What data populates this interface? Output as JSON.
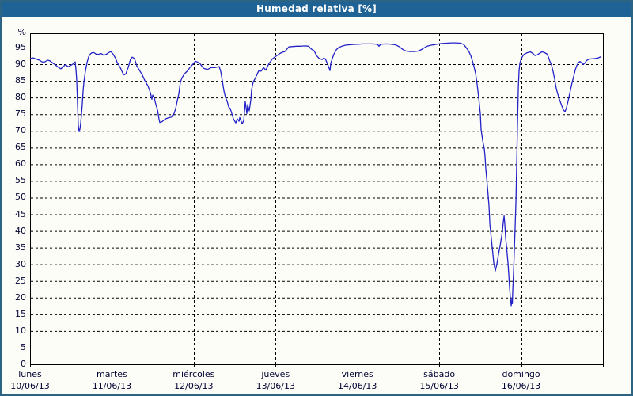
{
  "window": {
    "title": "Humedad relativa [%]"
  },
  "colors": {
    "header_bg": "#1f6396",
    "outer_border": "#2d6383",
    "page_bg": "#fdfdf8",
    "plot_bg": "#fdfdf8",
    "grid": "#000000",
    "label_text": "#000033",
    "title_text": "#ffffff",
    "line": "#2222c8"
  },
  "chart_data": {
    "type": "line",
    "title": "Humedad relativa [%]",
    "ylabel": "%",
    "percent_label": "%",
    "ylim": [
      0,
      99.3
    ],
    "y_ticks": [
      95,
      90,
      85,
      80,
      75,
      70,
      65,
      60,
      55,
      50,
      45,
      40,
      35,
      30,
      25,
      20,
      15,
      10,
      5,
      0
    ],
    "grid": "dashed",
    "xlim_days": [
      0,
      7
    ],
    "x_categories": [
      {
        "day": "lunes",
        "date": "10/06/13"
      },
      {
        "day": "martes",
        "date": "11/06/13"
      },
      {
        "day": "miércoles",
        "date": "12/06/13"
      },
      {
        "day": "jueves",
        "date": "13/06/13"
      },
      {
        "day": "viernes",
        "date": "14/06/13"
      },
      {
        "day": "sábado",
        "date": "15/06/13"
      },
      {
        "day": "domingo",
        "date": "16/06/13"
      }
    ],
    "series": [
      {
        "name": "Humedad relativa",
        "color": "#2222c8",
        "units": "%",
        "x_units": "days_from_monday",
        "points": [
          [
            0,
            91.7
          ],
          [
            0.039,
            91.9
          ],
          [
            0.077,
            91.5
          ],
          [
            0.116,
            91.2
          ],
          [
            0.145,
            90.7
          ],
          [
            0.174,
            90.6
          ],
          [
            0.213,
            91.2
          ],
          [
            0.242,
            91
          ],
          [
            0.28,
            90.3
          ],
          [
            0.309,
            89.8
          ],
          [
            0.338,
            89.2
          ],
          [
            0.377,
            88.6
          ],
          [
            0.406,
            89.3
          ],
          [
            0.435,
            89.9
          ],
          [
            0.464,
            89.2
          ],
          [
            0.493,
            89.6
          ],
          [
            0.522,
            90
          ],
          [
            0.551,
            90.7
          ],
          [
            0.561,
            88.5
          ],
          [
            0.57,
            85
          ],
          [
            0.58,
            78
          ],
          [
            0.59,
            71.5
          ],
          [
            0.599,
            69.8
          ],
          [
            0.609,
            70.5
          ],
          [
            0.619,
            72.4
          ],
          [
            0.628,
            75
          ],
          [
            0.638,
            78
          ],
          [
            0.648,
            81.9
          ],
          [
            0.657,
            84.5
          ],
          [
            0.667,
            86.3
          ],
          [
            0.677,
            88
          ],
          [
            0.696,
            90.5
          ],
          [
            0.715,
            92.2
          ],
          [
            0.735,
            93
          ],
          [
            0.754,
            93.4
          ],
          [
            0.773,
            93.5
          ],
          [
            0.793,
            93.3
          ],
          [
            0.812,
            92.9
          ],
          [
            0.841,
            93
          ],
          [
            0.87,
            93.2
          ],
          [
            0.899,
            92.7
          ],
          [
            0.928,
            92.9
          ],
          [
            0.957,
            93.4
          ],
          [
            0.986,
            93.8
          ],
          [
            1.015,
            93
          ],
          [
            1.044,
            91.8
          ],
          [
            1.063,
            90.6
          ],
          [
            1.102,
            89
          ],
          [
            1.131,
            87.4
          ],
          [
            1.15,
            86.8
          ],
          [
            1.17,
            87.1
          ],
          [
            1.199,
            89
          ],
          [
            1.228,
            91.5
          ],
          [
            1.247,
            92.1
          ],
          [
            1.276,
            91.7
          ],
          [
            1.305,
            89.4
          ],
          [
            1.344,
            87.9
          ],
          [
            1.373,
            86.7
          ],
          [
            1.402,
            85.1
          ],
          [
            1.441,
            83.5
          ],
          [
            1.47,
            81.5
          ],
          [
            1.489,
            79.5
          ],
          [
            1.499,
            80.7
          ],
          [
            1.518,
            79.9
          ],
          [
            1.537,
            77.9
          ],
          [
            1.557,
            76.4
          ],
          [
            1.576,
            73.5
          ],
          [
            1.586,
            72.5
          ],
          [
            1.615,
            72.8
          ],
          [
            1.644,
            73.4
          ],
          [
            1.663,
            73.7
          ],
          [
            1.702,
            74
          ],
          [
            1.74,
            74.2
          ],
          [
            1.76,
            75.2
          ],
          [
            1.779,
            76.7
          ],
          [
            1.798,
            79
          ],
          [
            1.818,
            81.1
          ],
          [
            1.837,
            84.7
          ],
          [
            1.856,
            85.9
          ],
          [
            1.876,
            86.7
          ],
          [
            1.895,
            87.3
          ],
          [
            1.924,
            88
          ],
          [
            1.953,
            89
          ],
          [
            1.982,
            89.8
          ],
          [
            2.021,
            90.9
          ],
          [
            2.05,
            90.6
          ],
          [
            2.079,
            90.1
          ],
          [
            2.117,
            88.8
          ],
          [
            2.166,
            88.4
          ],
          [
            2.214,
            89
          ],
          [
            2.262,
            89
          ],
          [
            2.311,
            89.3
          ],
          [
            2.33,
            87.8
          ],
          [
            2.349,
            85
          ],
          [
            2.369,
            82
          ],
          [
            2.388,
            80
          ],
          [
            2.407,
            79
          ],
          [
            2.427,
            77.2
          ],
          [
            2.446,
            76.7
          ],
          [
            2.465,
            75.2
          ],
          [
            2.485,
            73.6
          ],
          [
            2.504,
            72.8
          ],
          [
            2.514,
            72.4
          ],
          [
            2.533,
            73.6
          ],
          [
            2.553,
            72.9
          ],
          [
            2.562,
            74
          ],
          [
            2.591,
            72.1
          ],
          [
            2.611,
            73.1
          ],
          [
            2.63,
            78.8
          ],
          [
            2.649,
            75.2
          ],
          [
            2.659,
            77.9
          ],
          [
            2.678,
            76
          ],
          [
            2.698,
            79.5
          ],
          [
            2.707,
            82.4
          ],
          [
            2.727,
            84.7
          ],
          [
            2.746,
            85.5
          ],
          [
            2.775,
            87
          ],
          [
            2.794,
            88
          ],
          [
            2.823,
            87.9
          ],
          [
            2.852,
            89
          ],
          [
            2.881,
            88.2
          ],
          [
            2.901,
            89.3
          ],
          [
            2.92,
            90.2
          ],
          [
            2.959,
            91.5
          ],
          [
            2.988,
            92.1
          ],
          [
            3.017,
            92.6
          ],
          [
            3.046,
            93.1
          ],
          [
            3.075,
            93.5
          ],
          [
            3.113,
            93.8
          ],
          [
            3.142,
            94.6
          ],
          [
            3.162,
            95.2
          ],
          [
            3.21,
            95.3
          ],
          [
            3.258,
            95.4
          ],
          [
            3.307,
            95.4
          ],
          [
            3.355,
            95.5
          ],
          [
            3.404,
            95.4
          ],
          [
            3.433,
            94.6
          ],
          [
            3.471,
            94
          ],
          [
            3.5,
            92.6
          ],
          [
            3.529,
            91.8
          ],
          [
            3.568,
            91.4
          ],
          [
            3.587,
            91.8
          ],
          [
            3.607,
            91.6
          ],
          [
            3.626,
            90.6
          ],
          [
            3.645,
            89.4
          ],
          [
            3.665,
            88.1
          ],
          [
            3.674,
            90.2
          ],
          [
            3.694,
            91.8
          ],
          [
            3.713,
            93
          ],
          [
            3.742,
            94.3
          ],
          [
            3.771,
            95
          ],
          [
            3.81,
            95.4
          ],
          [
            3.848,
            95.7
          ],
          [
            3.887,
            95.8
          ],
          [
            3.935,
            95.9
          ],
          [
            3.984,
            96
          ],
          [
            4.013,
            96
          ],
          [
            4.061,
            96.1
          ],
          [
            4.119,
            96.1
          ],
          [
            4.177,
            96.1
          ],
          [
            4.245,
            96
          ],
          [
            4.264,
            95.4
          ],
          [
            4.284,
            96
          ],
          [
            4.351,
            96.1
          ],
          [
            4.419,
            96
          ],
          [
            4.467,
            95.8
          ],
          [
            4.516,
            95.2
          ],
          [
            4.545,
            94.6
          ],
          [
            4.574,
            94.1
          ],
          [
            4.603,
            93.9
          ],
          [
            4.641,
            93.8
          ],
          [
            4.69,
            93.8
          ],
          [
            4.738,
            93.9
          ],
          [
            4.777,
            94.3
          ],
          [
            4.815,
            94.9
          ],
          [
            4.854,
            95.4
          ],
          [
            4.893,
            95.7
          ],
          [
            4.951,
            95.9
          ],
          [
            4.989,
            96.1
          ],
          [
            5.028,
            96.2
          ],
          [
            5.086,
            96.3
          ],
          [
            5.144,
            96.4
          ],
          [
            5.202,
            96.4
          ],
          [
            5.26,
            96.3
          ],
          [
            5.299,
            95.9
          ],
          [
            5.328,
            95
          ],
          [
            5.357,
            94
          ],
          [
            5.386,
            92.5
          ],
          [
            5.405,
            91
          ],
          [
            5.424,
            89.3
          ],
          [
            5.444,
            87.2
          ],
          [
            5.463,
            84
          ],
          [
            5.482,
            80
          ],
          [
            5.502,
            75
          ],
          [
            5.511,
            70.4
          ],
          [
            5.531,
            67
          ],
          [
            5.55,
            64.8
          ],
          [
            5.56,
            62
          ],
          [
            5.569,
            58.5
          ],
          [
            5.579,
            56
          ],
          [
            5.589,
            53
          ],
          [
            5.598,
            50.5
          ],
          [
            5.608,
            47.5
          ],
          [
            5.618,
            42
          ],
          [
            5.627,
            40
          ],
          [
            5.637,
            37.5
          ],
          [
            5.647,
            35
          ],
          [
            5.666,
            30.5
          ],
          [
            5.685,
            28
          ],
          [
            5.705,
            30.2
          ],
          [
            5.724,
            33
          ],
          [
            5.743,
            35.5
          ],
          [
            5.763,
            38.5
          ],
          [
            5.772,
            40.2
          ],
          [
            5.782,
            42.5
          ],
          [
            5.792,
            44.5
          ],
          [
            5.801,
            42
          ],
          [
            5.811,
            38
          ],
          [
            5.821,
            35.5
          ],
          [
            5.83,
            33
          ],
          [
            5.84,
            30.5
          ],
          [
            5.85,
            26.5
          ],
          [
            5.859,
            23
          ],
          [
            5.869,
            20
          ],
          [
            5.879,
            17.6
          ],
          [
            5.888,
            19.5
          ],
          [
            5.893,
            18.2
          ],
          [
            5.898,
            22
          ],
          [
            5.908,
            28
          ],
          [
            5.917,
            34
          ],
          [
            5.927,
            41
          ],
          [
            5.937,
            49
          ],
          [
            5.946,
            60
          ],
          [
            5.956,
            72
          ],
          [
            5.966,
            83
          ],
          [
            5.975,
            88
          ],
          [
            5.985,
            90.3
          ],
          [
            6.004,
            91.8
          ],
          [
            6.033,
            92.9
          ],
          [
            6.072,
            93.4
          ],
          [
            6.111,
            93.7
          ],
          [
            6.14,
            93.3
          ],
          [
            6.169,
            92.6
          ],
          [
            6.198,
            92.8
          ],
          [
            6.227,
            93.3
          ],
          [
            6.256,
            93.7
          ],
          [
            6.285,
            93.5
          ],
          [
            6.314,
            93.1
          ],
          [
            6.333,
            92.2
          ],
          [
            6.352,
            90.8
          ],
          [
            6.372,
            89.8
          ],
          [
            6.391,
            87.8
          ],
          [
            6.41,
            85.5
          ],
          [
            6.43,
            82.7
          ],
          [
            6.449,
            81
          ],
          [
            6.468,
            79.5
          ],
          [
            6.497,
            77.5
          ],
          [
            6.517,
            76.4
          ],
          [
            6.536,
            75.7
          ],
          [
            6.555,
            77
          ],
          [
            6.575,
            79
          ],
          [
            6.594,
            81.2
          ],
          [
            6.623,
            84.5
          ],
          [
            6.642,
            86.3
          ],
          [
            6.662,
            88.3
          ],
          [
            6.681,
            89.6
          ],
          [
            6.7,
            90.5
          ],
          [
            6.72,
            90.8
          ],
          [
            6.739,
            90.4
          ],
          [
            6.758,
            89.9
          ],
          [
            6.778,
            90.3
          ],
          [
            6.797,
            91
          ],
          [
            6.826,
            91.5
          ],
          [
            6.865,
            91.6
          ],
          [
            6.903,
            91.7
          ],
          [
            6.942,
            91.9
          ],
          [
            6.981,
            92.3
          ]
        ]
      }
    ]
  }
}
